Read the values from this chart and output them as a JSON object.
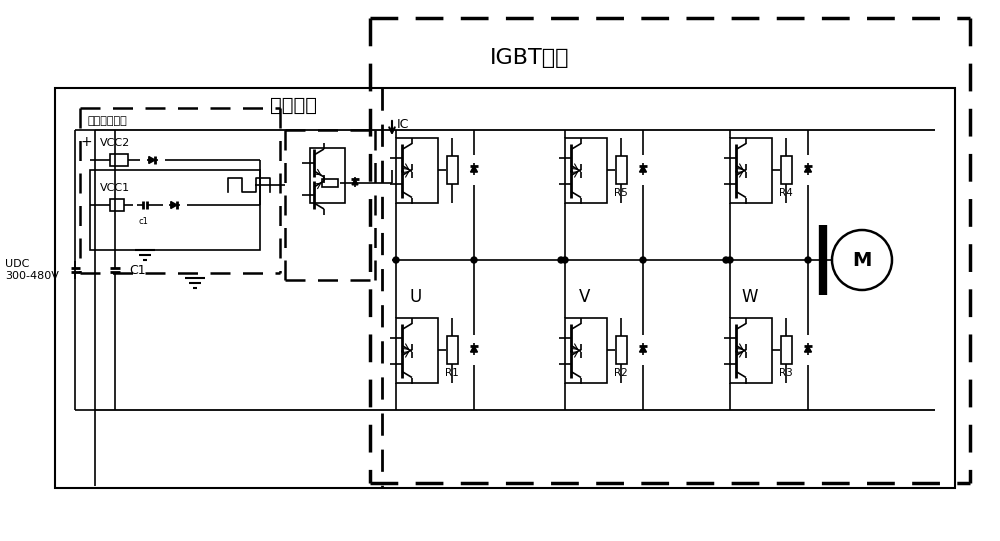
{
  "background_color": "#ffffff",
  "labels": {
    "IGBT_module": "IGBT模块",
    "drive_power": "驱动电源电路",
    "drive_chip": "驱动芯片",
    "VCC2": "VCC2",
    "VCC1": "VCC1",
    "C1_label": "C1",
    "c1_small": "c1",
    "UDC": "UDC\n300-480V",
    "IC": "IC",
    "U": "U",
    "V": "V",
    "W": "W",
    "R1": "R1",
    "R2": "R2",
    "R3": "R3",
    "R4": "R4",
    "R5": "R5",
    "M": "M"
  },
  "figsize": [
    10.0,
    5.41
  ],
  "dpi": 100
}
